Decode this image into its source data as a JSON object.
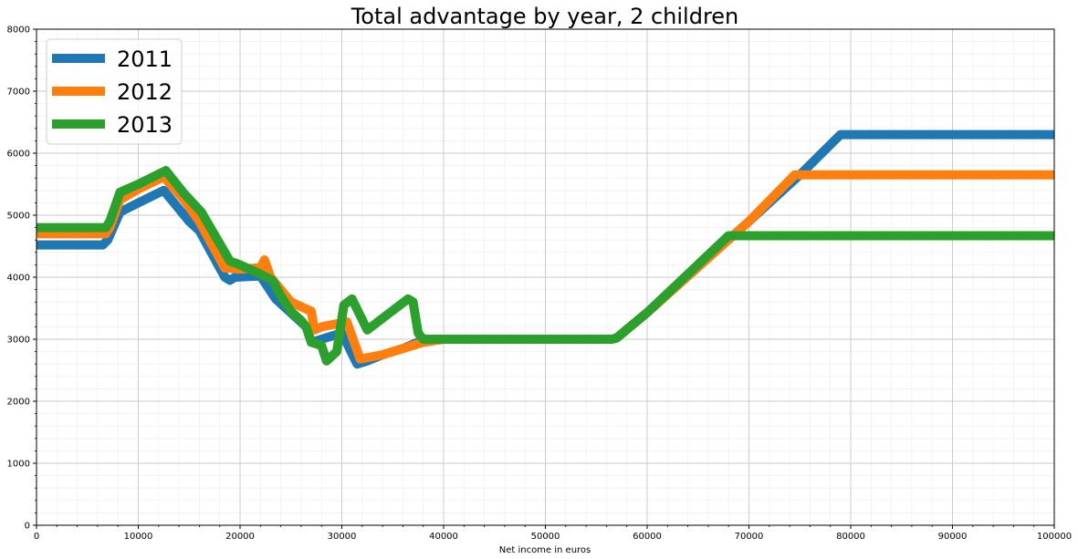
{
  "chart_data": {
    "type": "line",
    "title": "Total advantage by year, 2 children",
    "xlabel": "Net income in euros",
    "ylabel": "",
    "xlim": [
      0,
      100000
    ],
    "ylim": [
      0,
      8000
    ],
    "xticks": [
      0,
      10000,
      20000,
      30000,
      40000,
      50000,
      60000,
      70000,
      80000,
      90000,
      100000
    ],
    "yticks": [
      0,
      1000,
      2000,
      3000,
      4000,
      5000,
      6000,
      7000,
      8000
    ],
    "grid": true,
    "minor_grid": true,
    "legend_position": "top-left",
    "series": [
      {
        "name": "2011",
        "color": "#1f77b4",
        "points": [
          [
            0,
            4520
          ],
          [
            6500,
            4520
          ],
          [
            7000,
            4600
          ],
          [
            8200,
            5050
          ],
          [
            10000,
            5200
          ],
          [
            12500,
            5400
          ],
          [
            14000,
            5100
          ],
          [
            15000,
            4900
          ],
          [
            16000,
            4750
          ],
          [
            18500,
            4000
          ],
          [
            19000,
            3950
          ],
          [
            19500,
            4000
          ],
          [
            22000,
            4020
          ],
          [
            23500,
            3650
          ],
          [
            25500,
            3350
          ],
          [
            26500,
            3200
          ],
          [
            27000,
            2950
          ],
          [
            28000,
            3000
          ],
          [
            30000,
            3100
          ],
          [
            31500,
            2600
          ],
          [
            32500,
            2650
          ],
          [
            34000,
            2750
          ],
          [
            36000,
            2850
          ],
          [
            38000,
            2990
          ],
          [
            40000,
            3000
          ],
          [
            56500,
            3000
          ],
          [
            57000,
            3020
          ],
          [
            60000,
            3430
          ],
          [
            70000,
            4900
          ],
          [
            75000,
            5650
          ],
          [
            79000,
            6300
          ],
          [
            100000,
            6300
          ]
        ]
      },
      {
        "name": "2012",
        "color": "#ff7f0e",
        "points": [
          [
            0,
            4700
          ],
          [
            6800,
            4700
          ],
          [
            7200,
            4800
          ],
          [
            8200,
            5250
          ],
          [
            10000,
            5420
          ],
          [
            12500,
            5620
          ],
          [
            14500,
            5250
          ],
          [
            16000,
            4900
          ],
          [
            18500,
            4150
          ],
          [
            20000,
            4130
          ],
          [
            22000,
            4150
          ],
          [
            22400,
            4280
          ],
          [
            23000,
            4000
          ],
          [
            25000,
            3600
          ],
          [
            27000,
            3450
          ],
          [
            27300,
            3150
          ],
          [
            28000,
            3200
          ],
          [
            30500,
            3280
          ],
          [
            31800,
            2680
          ],
          [
            34000,
            2750
          ],
          [
            36000,
            2850
          ],
          [
            38000,
            2950
          ],
          [
            40000,
            3000
          ],
          [
            56500,
            3000
          ],
          [
            57000,
            3020
          ],
          [
            60000,
            3430
          ],
          [
            70000,
            4900
          ],
          [
            74500,
            5650
          ],
          [
            100000,
            5650
          ]
        ]
      },
      {
        "name": "2013",
        "color": "#2ca02c",
        "points": [
          [
            0,
            4800
          ],
          [
            6800,
            4800
          ],
          [
            7200,
            4900
          ],
          [
            8200,
            5370
          ],
          [
            10000,
            5500
          ],
          [
            12700,
            5720
          ],
          [
            14500,
            5350
          ],
          [
            16200,
            5050
          ],
          [
            19000,
            4260
          ],
          [
            20000,
            4200
          ],
          [
            22000,
            4050
          ],
          [
            23200,
            3950
          ],
          [
            24000,
            3700
          ],
          [
            25000,
            3450
          ],
          [
            26000,
            3300
          ],
          [
            26500,
            3200
          ],
          [
            27000,
            2950
          ],
          [
            28000,
            2900
          ],
          [
            28500,
            2650
          ],
          [
            29500,
            2800
          ],
          [
            30200,
            3550
          ],
          [
            31000,
            3650
          ],
          [
            32500,
            3150
          ],
          [
            36500,
            3650
          ],
          [
            37000,
            3600
          ],
          [
            37500,
            3100
          ],
          [
            38000,
            3000
          ],
          [
            56500,
            3000
          ],
          [
            57000,
            3020
          ],
          [
            60000,
            3430
          ],
          [
            68000,
            4670
          ],
          [
            100000,
            4670
          ]
        ]
      }
    ]
  }
}
